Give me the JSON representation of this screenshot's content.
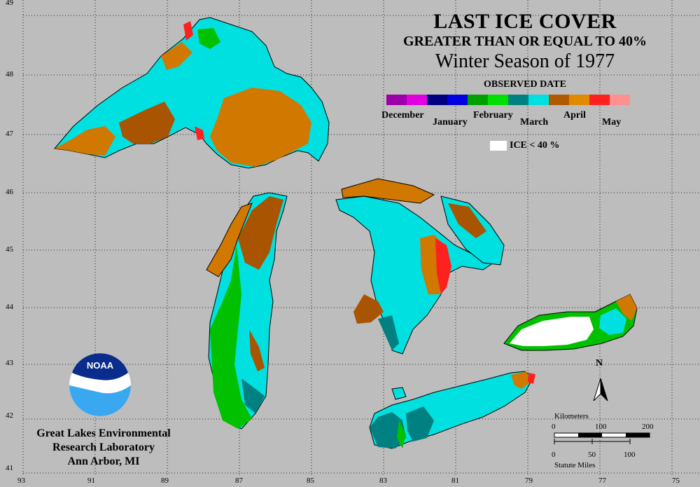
{
  "title": {
    "main": "LAST ICE COVER",
    "sub": "GREATER THAN OR EQUAL TO 40%",
    "season": "Winter Season of 1977",
    "legend_heading": "OBSERVED DATE"
  },
  "legend": {
    "colors": [
      {
        "color": "#9b00a8"
      },
      {
        "color": "#e000e0"
      },
      {
        "color": "#000080"
      },
      {
        "color": "#0000e0"
      },
      {
        "color": "#00a000"
      },
      {
        "color": "#00e000"
      },
      {
        "color": "#008080"
      },
      {
        "color": "#00e0e0"
      },
      {
        "color": "#b05a00"
      },
      {
        "color": "#e08a00"
      },
      {
        "color": "#ff2020"
      },
      {
        "color": "#ff9090"
      }
    ],
    "months": [
      "December",
      "January",
      "February",
      "March",
      "April",
      "May"
    ],
    "ice_note": "ICE < 40 %"
  },
  "lat_labels": [
    "49",
    "48",
    "47",
    "46",
    "45",
    "44",
    "43",
    "42",
    "41"
  ],
  "lon_labels": [
    "93",
    "91",
    "89",
    "87",
    "85",
    "83",
    "81",
    "79",
    "77",
    "75"
  ],
  "lab": {
    "line1": "Great Lakes Environmental",
    "line2": "Research Laboratory",
    "line3": "Ann Arbor, MI"
  },
  "logo": {
    "text": "NOAA"
  },
  "scale": {
    "km_label": "Kilometers",
    "km_ticks": [
      "0",
      "100",
      "200"
    ],
    "mi_ticks": [
      "0",
      "50",
      "100"
    ],
    "mi_label": "Statute Miles"
  },
  "north": {
    "label": "N"
  },
  "colors": {
    "background": "#bdbdbd",
    "land_outline": "#000000",
    "water_cyan": "#00e0e0",
    "teal": "#008080",
    "green": "#00c000",
    "orange": "#d07800",
    "brown": "#a85400",
    "red": "#ff2020",
    "ice_low": "#ffffff"
  }
}
